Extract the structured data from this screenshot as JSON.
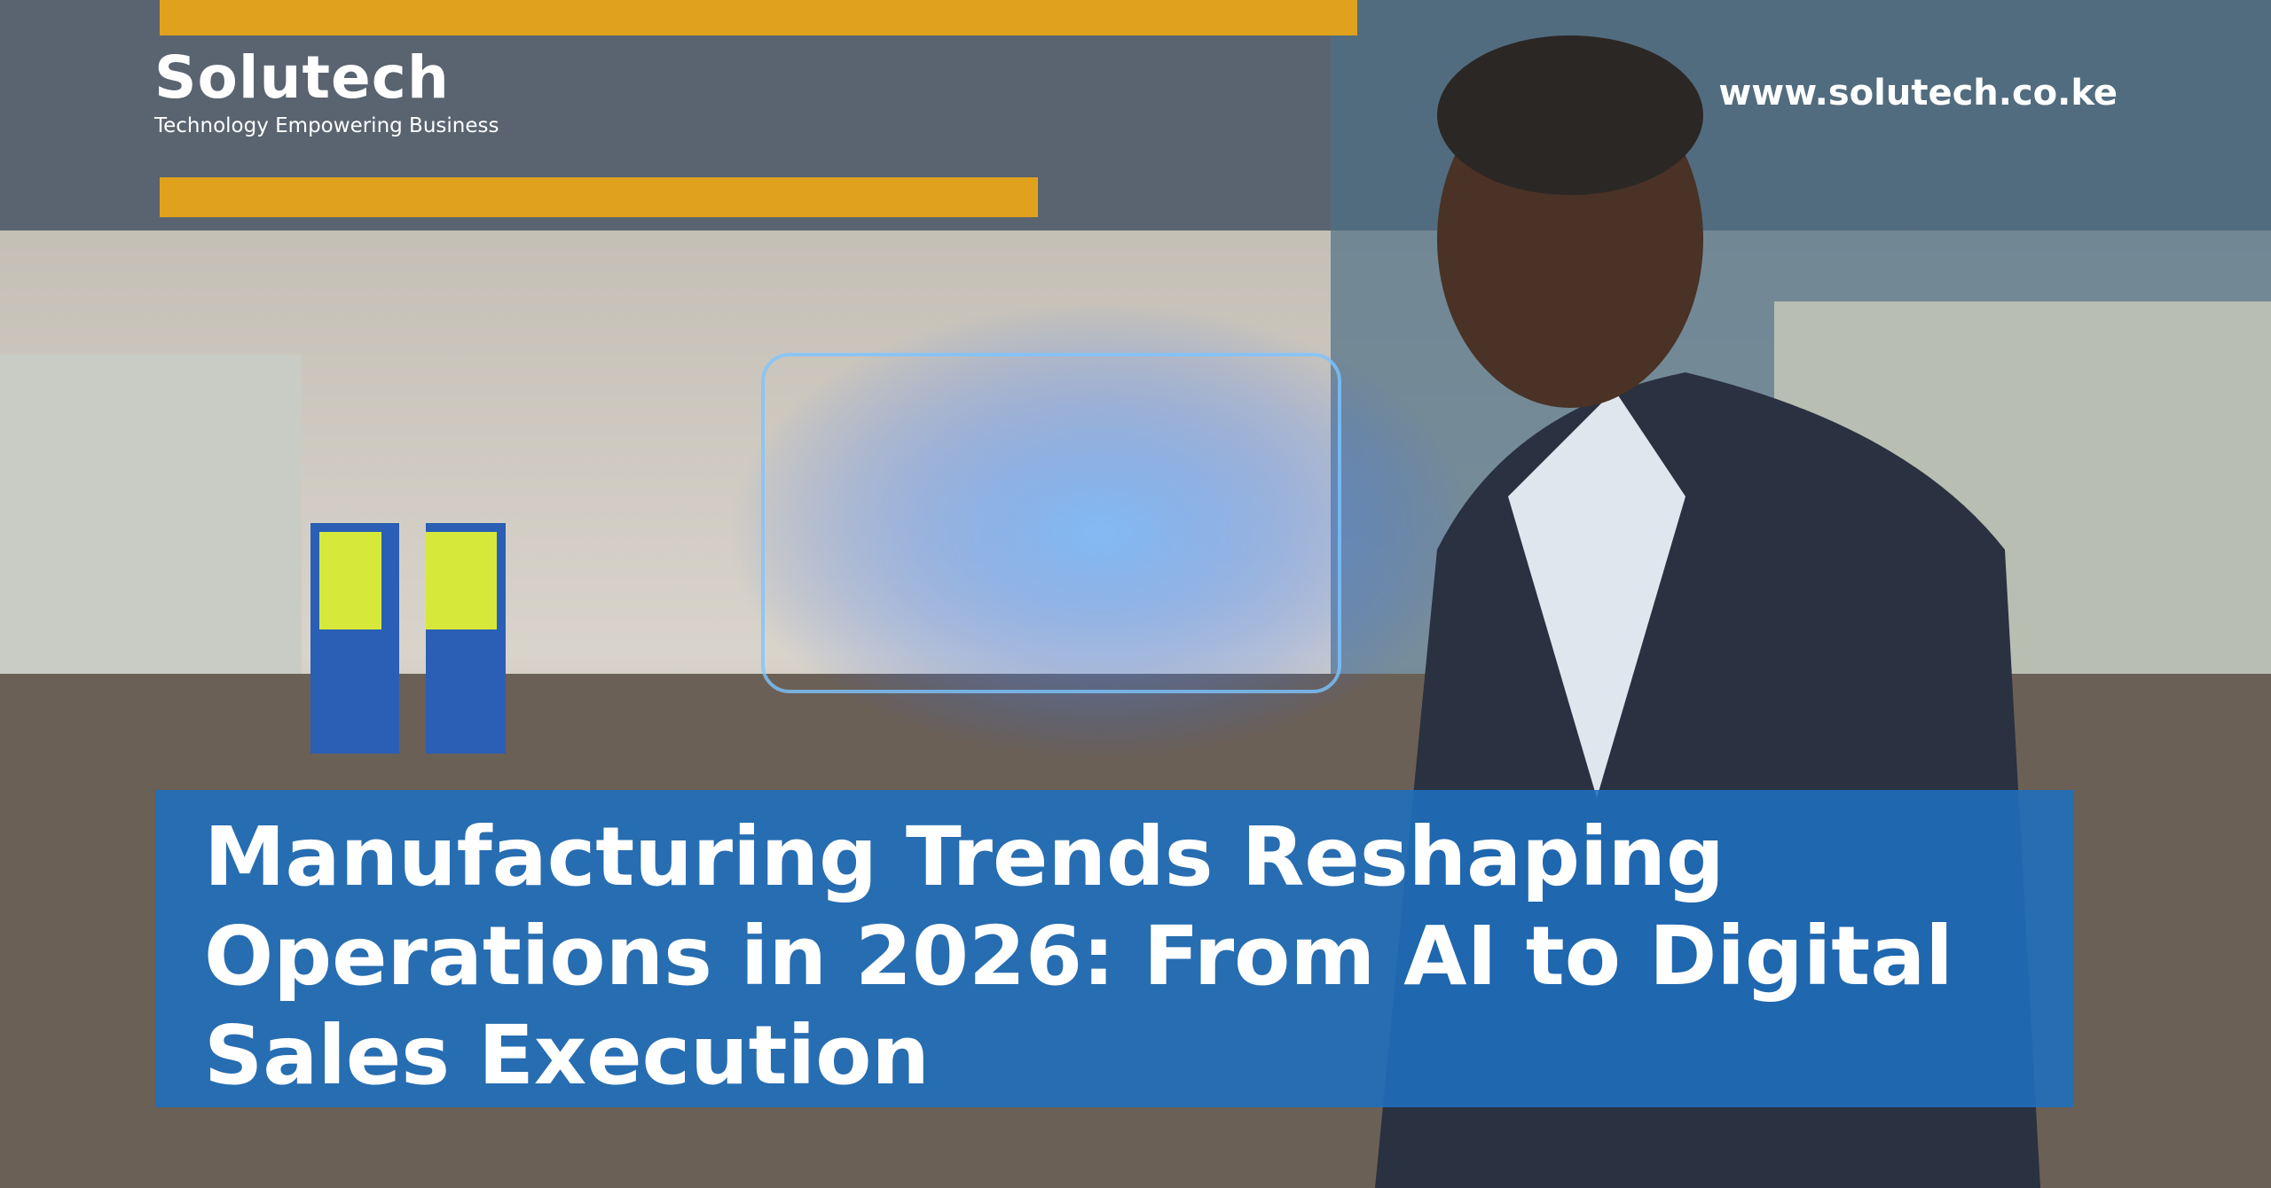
{
  "brand": {
    "name": "Solutech",
    "tagline": "Technology Empowering Business"
  },
  "website": "www.solutech.co.ke",
  "headline": "Manufacturing Trends Reshaping Operations in 2026: From AI to Digital Sales Execution"
}
